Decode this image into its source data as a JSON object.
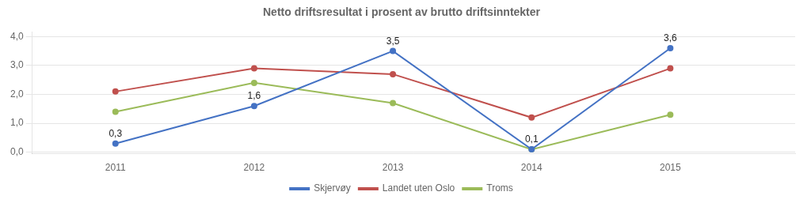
{
  "chart_data": {
    "type": "line",
    "title": "Netto driftsresultat i prosent av brutto driftsinntekter",
    "x": [
      2011,
      2012,
      2013,
      2014,
      2015
    ],
    "xlim": [
      2010.4,
      2015.9
    ],
    "xticks": [
      2011,
      2012,
      2013,
      2014,
      2015
    ],
    "ylim": [
      -0.05,
      4.15
    ],
    "yticks": [
      {
        "value": 0.0,
        "label": "0,0"
      },
      {
        "value": 1.0,
        "label": "1,0"
      },
      {
        "value": 2.0,
        "label": "2,0"
      },
      {
        "value": 3.0,
        "label": "3,0"
      },
      {
        "value": 4.0,
        "label": "4,0"
      }
    ],
    "grid": "y",
    "legend": "bottom",
    "series": [
      {
        "name": "Skjervøy",
        "color": "#4472C4",
        "marker": "circle",
        "line_style": "solid",
        "values": [
          0.3,
          1.6,
          3.5,
          0.1,
          3.6
        ],
        "data_labels": true,
        "value_labels": [
          "0,3",
          "1,6",
          "3,5",
          "0,1",
          "3,6"
        ]
      },
      {
        "name": "Landet uten Oslo",
        "color": "#C0504D",
        "marker": "circle",
        "line_style": "solid",
        "values": [
          2.1,
          2.9,
          2.7,
          1.2,
          2.9
        ]
      },
      {
        "name": "Troms",
        "color": "#9BBB59",
        "marker": "circle",
        "line_style": "solid",
        "values": [
          1.4,
          2.4,
          1.7,
          0.1,
          1.3
        ]
      }
    ]
  }
}
